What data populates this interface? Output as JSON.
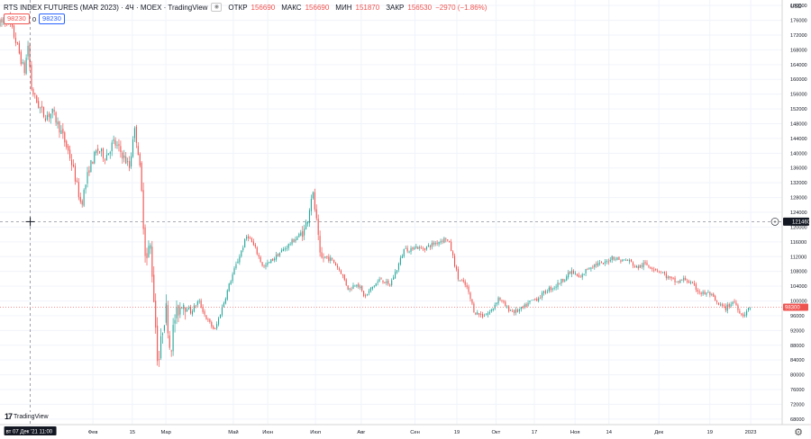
{
  "legend": {
    "title": "RTS INDEX FUTURES (MAR 2023) · 4Ч · MOEX · TradingView",
    "open_label": "ОТКР",
    "open_value": "156690",
    "high_label": "МАКС",
    "high_value": "156690",
    "low_label": "МИН",
    "low_value": "151870",
    "close_label": "ЗАКР",
    "close_value": "156530",
    "change_value": "−2970 (−1.86%)",
    "badge_left": "98230",
    "badge_zero": "0",
    "badge_right": "98230"
  },
  "branding": {
    "logo_text": "TradingView"
  },
  "colors": {
    "up": "#26a69a",
    "down": "#ef5350",
    "grid": "#f0f3fa",
    "axis_text": "#131722",
    "crosshair": "#787b86"
  },
  "chart_data": {
    "type": "candlestick",
    "currency_label": "USD",
    "y_ticks": [
      68000,
      72000,
      76000,
      80000,
      84000,
      88000,
      92000,
      96000,
      100000,
      104000,
      108000,
      112000,
      116000,
      120000,
      124000,
      128000,
      132000,
      136000,
      140000,
      144000,
      148000,
      152000,
      156000,
      160000,
      164000,
      168000,
      172000,
      176000,
      180000
    ],
    "y_tick_labels": [
      "68000",
      "72000",
      "76000",
      "80000",
      "84000",
      "88000",
      "92000",
      "96000",
      "100000",
      "104000",
      "108000",
      "112000",
      "116000",
      "120000",
      "124000",
      "128000",
      "132000",
      "136000",
      "140000",
      "144000",
      "148000",
      "152000",
      "156000",
      "160000",
      "164000",
      "168000",
      "172000",
      "176000",
      "180000"
    ],
    "ylim": [
      66500,
      181500
    ],
    "x_tick_labels": [
      "Фев",
      "15",
      "Мар",
      "Май",
      "Июн",
      "Июл",
      "Авг",
      "Сен",
      "19",
      "Окт",
      "17",
      "Ноя",
      "14",
      "Дек",
      "19",
      "2023"
    ],
    "x_tick_positions": [
      0.1145,
      0.1631,
      0.2046,
      0.2877,
      0.3301,
      0.3891,
      0.4454,
      0.5117,
      0.5633,
      0.6115,
      0.6589,
      0.7091,
      0.7508,
      0.8124,
      0.8753,
      0.9256
    ],
    "crosshair": {
      "time_label": "вт 07 Дек '21   11:00",
      "price_label": "121460",
      "price": 121460,
      "x_fraction": 0.0373
    },
    "last_price": {
      "label": "98300",
      "value": 98300
    },
    "trend": [
      [
        0.0,
        175000
      ],
      [
        0.01,
        176500
      ],
      [
        0.02,
        170000
      ],
      [
        0.03,
        162000
      ],
      [
        0.035,
        170000
      ],
      [
        0.038,
        158000
      ],
      [
        0.045,
        154000
      ],
      [
        0.055,
        150000
      ],
      [
        0.065,
        151000
      ],
      [
        0.075,
        146000
      ],
      [
        0.085,
        140000
      ],
      [
        0.09,
        136000
      ],
      [
        0.1,
        126000
      ],
      [
        0.11,
        136000
      ],
      [
        0.12,
        141000
      ],
      [
        0.13,
        139000
      ],
      [
        0.14,
        143000
      ],
      [
        0.15,
        140000
      ],
      [
        0.16,
        136000
      ],
      [
        0.165,
        147000
      ],
      [
        0.17,
        142000
      ],
      [
        0.175,
        128000
      ],
      [
        0.18,
        110000
      ],
      [
        0.185,
        116000
      ],
      [
        0.19,
        100000
      ],
      [
        0.195,
        82000
      ],
      [
        0.2,
        92000
      ],
      [
        0.205,
        98000
      ],
      [
        0.21,
        86000
      ],
      [
        0.215,
        95000
      ],
      [
        0.225,
        100000
      ],
      [
        0.235,
        97000
      ],
      [
        0.245,
        100000
      ],
      [
        0.255,
        95000
      ],
      [
        0.265,
        92000
      ],
      [
        0.275,
        99000
      ],
      [
        0.285,
        106000
      ],
      [
        0.295,
        112000
      ],
      [
        0.305,
        118000
      ],
      [
        0.315,
        114000
      ],
      [
        0.325,
        109000
      ],
      [
        0.335,
        111000
      ],
      [
        0.345,
        113000
      ],
      [
        0.355,
        115000
      ],
      [
        0.365,
        117000
      ],
      [
        0.375,
        119000
      ],
      [
        0.38,
        123000
      ],
      [
        0.385,
        130000
      ],
      [
        0.39,
        122000
      ],
      [
        0.395,
        111000
      ],
      [
        0.4,
        112000
      ],
      [
        0.41,
        111000
      ],
      [
        0.42,
        108000
      ],
      [
        0.43,
        103000
      ],
      [
        0.44,
        105000
      ],
      [
        0.45,
        101000
      ],
      [
        0.46,
        104000
      ],
      [
        0.47,
        106000
      ],
      [
        0.48,
        104000
      ],
      [
        0.49,
        109000
      ],
      [
        0.5,
        115000
      ],
      [
        0.505,
        113000
      ],
      [
        0.51,
        115000
      ],
      [
        0.52,
        114000
      ],
      [
        0.53,
        115000
      ],
      [
        0.54,
        116000
      ],
      [
        0.55,
        117000
      ],
      [
        0.555,
        115000
      ],
      [
        0.565,
        106000
      ],
      [
        0.575,
        104000
      ],
      [
        0.585,
        97000
      ],
      [
        0.595,
        96000
      ],
      [
        0.605,
        97000
      ],
      [
        0.615,
        101000
      ],
      [
        0.625,
        98000
      ],
      [
        0.635,
        97000
      ],
      [
        0.645,
        98000
      ],
      [
        0.655,
        100000
      ],
      [
        0.665,
        101000
      ],
      [
        0.675,
        103000
      ],
      [
        0.685,
        104000
      ],
      [
        0.695,
        106000
      ],
      [
        0.705,
        108000
      ],
      [
        0.715,
        106000
      ],
      [
        0.725,
        109000
      ],
      [
        0.735,
        110000
      ],
      [
        0.745,
        110000
      ],
      [
        0.755,
        112000
      ],
      [
        0.765,
        111000
      ],
      [
        0.775,
        111000
      ],
      [
        0.785,
        109000
      ],
      [
        0.795,
        110000
      ],
      [
        0.805,
        109000
      ],
      [
        0.815,
        108000
      ],
      [
        0.825,
        106000
      ],
      [
        0.835,
        105000
      ],
      [
        0.845,
        106000
      ],
      [
        0.855,
        104000
      ],
      [
        0.865,
        102000
      ],
      [
        0.875,
        102000
      ],
      [
        0.885,
        99000
      ],
      [
        0.895,
        98000
      ],
      [
        0.905,
        100000
      ],
      [
        0.915,
        96000
      ],
      [
        0.92,
        97000
      ],
      [
        0.925,
        98300
      ]
    ]
  }
}
